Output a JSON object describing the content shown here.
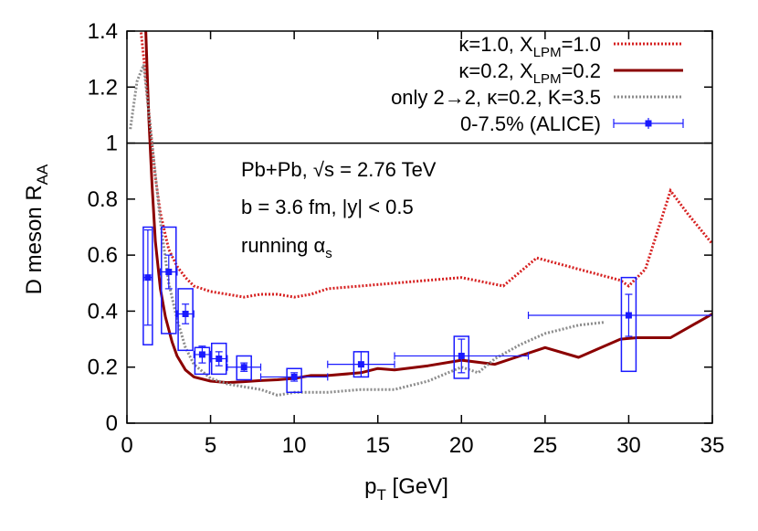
{
  "chart_data": {
    "type": "line",
    "xlabel": {
      "main": "p",
      "sub": "T",
      "rest": " [GeV]"
    },
    "ylabel": {
      "main": "D meson R",
      "sub": "AA"
    },
    "xlim": [
      0,
      35
    ],
    "ylim": [
      0,
      1.4
    ],
    "x_ticks": [
      0,
      5,
      10,
      15,
      20,
      25,
      30,
      35
    ],
    "y_ticks": [
      0,
      0.2,
      0.4,
      0.6,
      0.8,
      1,
      1.2,
      1.4
    ],
    "x_tick_labels": [
      "0",
      "5",
      "10",
      "15",
      "20",
      "25",
      "30",
      "35"
    ],
    "y_tick_labels": [
      "0",
      "0.2",
      "0.4",
      "0.6",
      "0.8",
      "1",
      "1.2",
      "1.4"
    ],
    "reference_line_y": 1,
    "legend_position": "top-right",
    "annotations": [
      {
        "id": "system",
        "text": "Pb+Pb, √s = 2.76 TeV"
      },
      {
        "id": "impact",
        "text": "b = 3.6 fm, |y| < 0.5"
      },
      {
        "id": "coupling",
        "main": "running α",
        "sub": "s"
      }
    ],
    "series": [
      {
        "name": "κ=1.0, X_LPM=1.0",
        "legend": {
          "pre": "κ=1.0, X",
          "sub": "LPM",
          "post": "=1.0"
        },
        "style": "dotted",
        "color": "#d62020",
        "x": [
          0.5,
          0.8,
          1.1,
          1.4,
          1.7,
          2.0,
          2.5,
          3.0,
          3.5,
          4.0,
          4.5,
          5.0,
          6.0,
          7.0,
          8.0,
          9.0,
          10.0,
          11.0,
          12.0,
          14.0,
          16.0,
          18.0,
          20.0,
          22.5,
          24.5,
          27.0,
          29.5,
          30.0,
          31.0,
          32.5,
          33.5,
          35.0
        ],
        "y": [
          1.55,
          1.42,
          1.25,
          1.05,
          0.88,
          0.75,
          0.62,
          0.56,
          0.52,
          0.49,
          0.48,
          0.47,
          0.46,
          0.45,
          0.46,
          0.46,
          0.45,
          0.46,
          0.48,
          0.49,
          0.5,
          0.51,
          0.52,
          0.49,
          0.59,
          0.55,
          0.51,
          0.49,
          0.55,
          0.83,
          0.75,
          0.64
        ]
      },
      {
        "name": "κ=0.2, X_LPM=0.2",
        "legend": {
          "pre": "κ=0.2, X",
          "sub": "LPM",
          "post": "=0.2"
        },
        "style": "solid",
        "color": "#8b0000",
        "x": [
          1.1,
          1.3,
          1.5,
          1.7,
          2.0,
          2.3,
          2.7,
          3.0,
          3.5,
          4.0,
          5.0,
          6.0,
          7.0,
          8.0,
          9.0,
          10.0,
          11.0,
          12.0,
          14.0,
          15.0,
          16.0,
          18.0,
          20.0,
          22.0,
          23.0,
          25.0,
          27.0,
          29.5,
          30.5,
          32.5,
          35.0
        ],
        "y": [
          1.45,
          1.1,
          0.85,
          0.65,
          0.48,
          0.38,
          0.29,
          0.24,
          0.19,
          0.165,
          0.15,
          0.145,
          0.148,
          0.152,
          0.155,
          0.16,
          0.17,
          0.17,
          0.18,
          0.195,
          0.19,
          0.205,
          0.225,
          0.21,
          0.23,
          0.27,
          0.235,
          0.3,
          0.305,
          0.305,
          0.39
        ]
      },
      {
        "name": "only 2→2, κ=0.2, K=3.5",
        "legend": {
          "pre": "only 2→2, κ=0.2, K=3.5",
          "sub": "",
          "post": ""
        },
        "style": "dotted",
        "color": "#8c8c8c",
        "x": [
          0.2,
          0.6,
          1.0,
          1.5,
          2.0,
          2.5,
          3.0,
          3.5,
          4.0,
          5.0,
          6.0,
          7.0,
          8.0,
          9.0,
          10.0,
          12.0,
          14.0,
          16.0,
          18.0,
          20.0,
          21.0,
          22.0,
          23.5,
          25.0,
          27.0,
          28.5
        ],
        "y": [
          1.05,
          1.22,
          1.28,
          1.0,
          0.72,
          0.5,
          0.37,
          0.27,
          0.21,
          0.16,
          0.14,
          0.13,
          0.12,
          0.1,
          0.11,
          0.11,
          0.12,
          0.12,
          0.15,
          0.2,
          0.18,
          0.23,
          0.28,
          0.32,
          0.35,
          0.36
        ]
      }
    ],
    "points": {
      "name": "0-7.5% (ALICE)",
      "legend": {
        "pre": "0-7.5% (ALICE)",
        "sub": "",
        "post": ""
      },
      "color": "#1a1aff",
      "x": [
        1.25,
        2.5,
        3.5,
        4.5,
        5.5,
        7.0,
        10.0,
        14.0,
        20.0,
        30.0
      ],
      "y": [
        0.52,
        0.54,
        0.39,
        0.245,
        0.23,
        0.2,
        0.165,
        0.21,
        0.24,
        0.385
      ],
      "x_err": [
        0.25,
        0.5,
        0.5,
        0.5,
        0.5,
        1.0,
        2.0,
        2.0,
        4.0,
        6.0
      ],
      "y_stat": [
        0.17,
        0.06,
        0.035,
        0.03,
        0.025,
        0.015,
        0.015,
        0.045,
        0.06,
        0.075
      ],
      "syst_lo": [
        0.28,
        0.32,
        0.26,
        0.175,
        0.175,
        0.155,
        0.11,
        0.165,
        0.16,
        0.185
      ],
      "syst_hi": [
        0.7,
        0.7,
        0.48,
        0.27,
        0.285,
        0.24,
        0.195,
        0.255,
        0.31,
        0.52
      ]
    }
  }
}
